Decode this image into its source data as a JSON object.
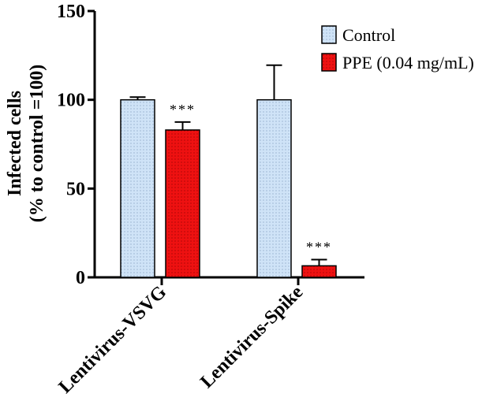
{
  "chart_data": {
    "type": "bar",
    "categories": [
      "Lentivirus-VSVG",
      "Lentivirus-Spike"
    ],
    "series": [
      {
        "name": "Control",
        "values": [
          100,
          100
        ],
        "errors": [
          1.5,
          19.5
        ],
        "color": "#cfe3f7",
        "significance": [
          "",
          ""
        ]
      },
      {
        "name": "PPE (0.04 mg/mL)",
        "values": [
          83,
          6.5
        ],
        "errors": [
          4.5,
          3.5
        ],
        "color": "#ee1111",
        "significance": [
          "***",
          "***"
        ]
      }
    ],
    "title": "",
    "xlabel": "",
    "ylabel": [
      "Infected cells",
      "(% to control =100)"
    ],
    "ylim": [
      0,
      150
    ],
    "yticks": [
      0,
      50,
      100,
      150
    ],
    "grid": false,
    "legend": "top-right"
  }
}
